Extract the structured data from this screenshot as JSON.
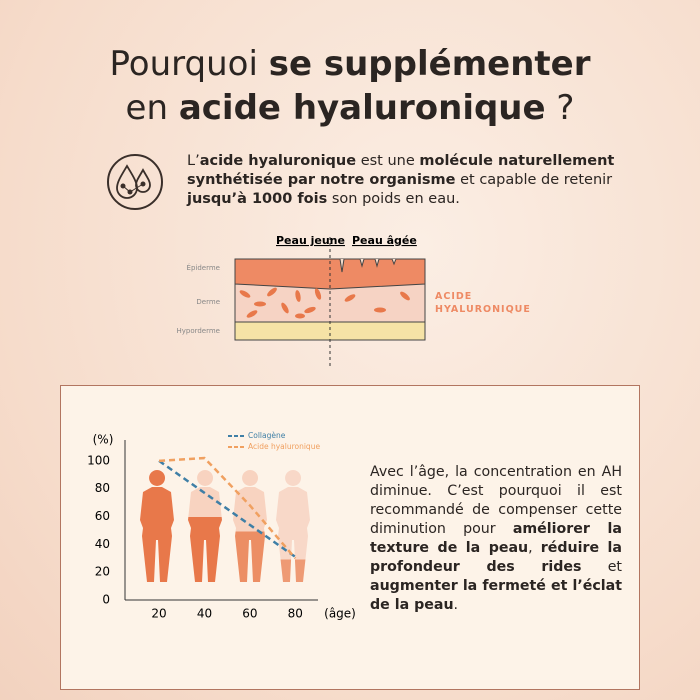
{
  "header": {
    "title_line1": [
      "Pourquoi ",
      "se supplémenter"
    ],
    "title_line2": [
      "en ",
      "acide hyaluronique",
      " ?"
    ]
  },
  "intro": [
    "L’",
    "acide hyaluronique",
    " est une ",
    "molécule naturellement synthétisée par notre organisme",
    " et capable de retenir ",
    "jusqu’à 1000 fois",
    " son poids en eau."
  ],
  "skin_diagram": {
    "young": "Peau jeune",
    "aged": "Peau âgée",
    "layers": [
      "Épiderme",
      "Derme",
      "Hyporderme"
    ],
    "highlight": "ACIDE HYALURONIQUE"
  },
  "chart_data": {
    "type": "line",
    "y_label": "(%)",
    "x_label": "(âge)",
    "x": [
      20,
      40,
      60,
      80
    ],
    "xlim": [
      5,
      90
    ],
    "xticks": [
      20,
      40,
      60,
      80
    ],
    "ylim": [
      0,
      115
    ],
    "yticks": [
      0,
      20,
      40,
      60,
      80,
      100
    ],
    "series": [
      {
        "name": "Collagène",
        "color": "#3f7fa6",
        "values": [
          100,
          77,
          54,
          31
        ]
      },
      {
        "name": "Acide hyaluronique",
        "color": "#f0a060",
        "values": [
          100,
          102,
          68,
          30
        ]
      }
    ]
  },
  "paragraph": [
    "Avec l’âge, la concentration en AH diminue. C’est pourquoi il est recommandé de compenser cette diminution pour ",
    "améliorer la texture de la peau",
    ", ",
    "réduire la profondeur des rides",
    " et ",
    "augmenter la fermeté et l’éclat de la peau",
    "."
  ]
}
